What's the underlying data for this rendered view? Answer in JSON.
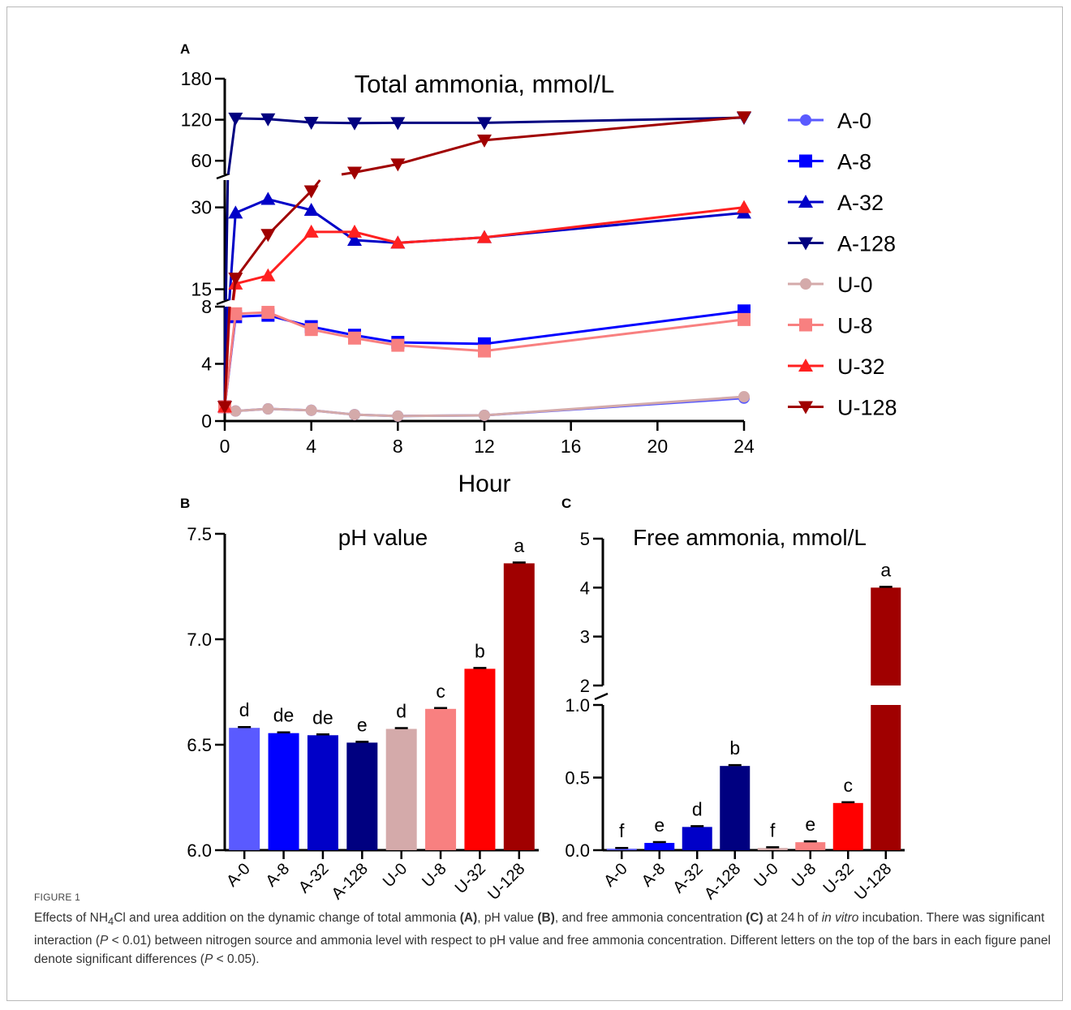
{
  "figure": {
    "label": "FIGURE 1",
    "caption": {
      "p1": "Effects of NH",
      "p1_sub": "4",
      "p2": "Cl and urea addition on the dynamic change of total ammonia ",
      "ref_a": "(A)",
      "p3": ", pH value ",
      "ref_b": "(B)",
      "p4": ", and free ammonia concentration ",
      "ref_c": "(C)",
      "p5": " at 24 h of ",
      "italic1": "in vitro",
      "p6": " incubation. There was significant interaction (",
      "p_letter": "P",
      "p7": " < 0.01) between nitrogen source and ammonia level with respect to pH value and free ammonia concentration. Different letters on the top of the bars in each figure panel denote significant differences (",
      "p8": " < 0.05)."
    }
  },
  "chart_data": [
    {
      "panel": "A",
      "type": "line",
      "title": "Total ammonia, mmol/L",
      "xlabel": "Hour",
      "ylabel": "",
      "x_ticks": [
        0,
        4,
        8,
        12,
        16,
        20,
        24
      ],
      "xlim": [
        0,
        24
      ],
      "y_segments": [
        {
          "range": [
            0,
            8
          ],
          "ticks": [
            0,
            4,
            8
          ]
        },
        {
          "range": [
            13,
            35
          ],
          "ticks": [
            15,
            30
          ]
        },
        {
          "range": [
            40,
            180
          ],
          "ticks": [
            60,
            120,
            180
          ]
        }
      ],
      "x": [
        0,
        0.5,
        2,
        4,
        6,
        8,
        12,
        24
      ],
      "legend_position": "right",
      "series": [
        {
          "name": "A-0",
          "color": "#5a5aff",
          "marker": "circle",
          "values": [
            1.0,
            0.7,
            0.85,
            0.75,
            0.45,
            0.35,
            0.4,
            1.6
          ]
        },
        {
          "name": "A-8",
          "color": "#0000ff",
          "marker": "square",
          "values": [
            1.0,
            7.3,
            7.4,
            6.6,
            6.0,
            5.5,
            5.4,
            7.7
          ]
        },
        {
          "name": "A-32",
          "color": "#0000c8",
          "marker": "triangle-up",
          "values": [
            1.0,
            29.0,
            31.5,
            29.5,
            24.0,
            23.5,
            24.5,
            29.0
          ]
        },
        {
          "name": "A-128",
          "color": "#000080",
          "marker": "triangle-down",
          "values": [
            1.0,
            122.0,
            121.0,
            116.0,
            115.0,
            115.5,
            115.5,
            123.0
          ]
        },
        {
          "name": "U-0",
          "color": "#d4aaaa",
          "marker": "circle",
          "values": [
            1.0,
            0.7,
            0.85,
            0.75,
            0.45,
            0.35,
            0.4,
            1.7
          ]
        },
        {
          "name": "U-8",
          "color": "#f88080",
          "marker": "square",
          "values": [
            1.0,
            7.5,
            7.6,
            6.4,
            5.8,
            5.3,
            4.9,
            7.1
          ]
        },
        {
          "name": "U-32",
          "color": "#ff2020",
          "marker": "triangle-up",
          "values": [
            1.0,
            16.0,
            17.5,
            25.5,
            25.5,
            23.5,
            24.5,
            30.0
          ]
        },
        {
          "name": "U-128",
          "color": "#a00000",
          "marker": "triangle-down",
          "values": [
            1.0,
            17.0,
            25.0,
            33.0,
            43.0,
            55.0,
            90.0,
            124.0
          ]
        }
      ]
    },
    {
      "panel": "B",
      "type": "bar",
      "title": "pH value",
      "xlabel": "",
      "ylabel": "",
      "ylim": [
        6.0,
        7.5
      ],
      "y_ticks": [
        6.0,
        6.5,
        7.0,
        7.5
      ],
      "categories": [
        "A-0",
        "A-8",
        "A-32",
        "A-128",
        "U-0",
        "U-8",
        "U-32",
        "U-128"
      ],
      "values": [
        6.58,
        6.555,
        6.545,
        6.51,
        6.575,
        6.67,
        6.86,
        7.36
      ],
      "letters": [
        "d",
        "de",
        "de",
        "e",
        "d",
        "c",
        "b",
        "a"
      ],
      "colors": [
        "#5a5aff",
        "#0000ff",
        "#0000c8",
        "#000080",
        "#d4aaaa",
        "#f88080",
        "#ff0000",
        "#a00000"
      ]
    },
    {
      "panel": "C",
      "type": "bar",
      "title": "Free ammonia, mmol/L",
      "xlabel": "",
      "ylabel": "",
      "y_segments": [
        {
          "range": [
            0,
            1.0
          ],
          "ticks": [
            0.0,
            0.5,
            1.0
          ]
        },
        {
          "range": [
            2,
            5
          ],
          "ticks": [
            2,
            3,
            4,
            5
          ]
        }
      ],
      "categories": [
        "A-0",
        "A-8",
        "A-32",
        "A-128",
        "U-0",
        "U-8",
        "U-32",
        "U-128"
      ],
      "values": [
        0.01,
        0.05,
        0.16,
        0.58,
        0.015,
        0.055,
        0.325,
        4.0
      ],
      "letters": [
        "f",
        "e",
        "d",
        "b",
        "f",
        "e",
        "c",
        "a"
      ],
      "colors": [
        "#5a5aff",
        "#0000ff",
        "#0000c8",
        "#000080",
        "#d4aaaa",
        "#f88080",
        "#ff0000",
        "#a00000"
      ]
    }
  ]
}
